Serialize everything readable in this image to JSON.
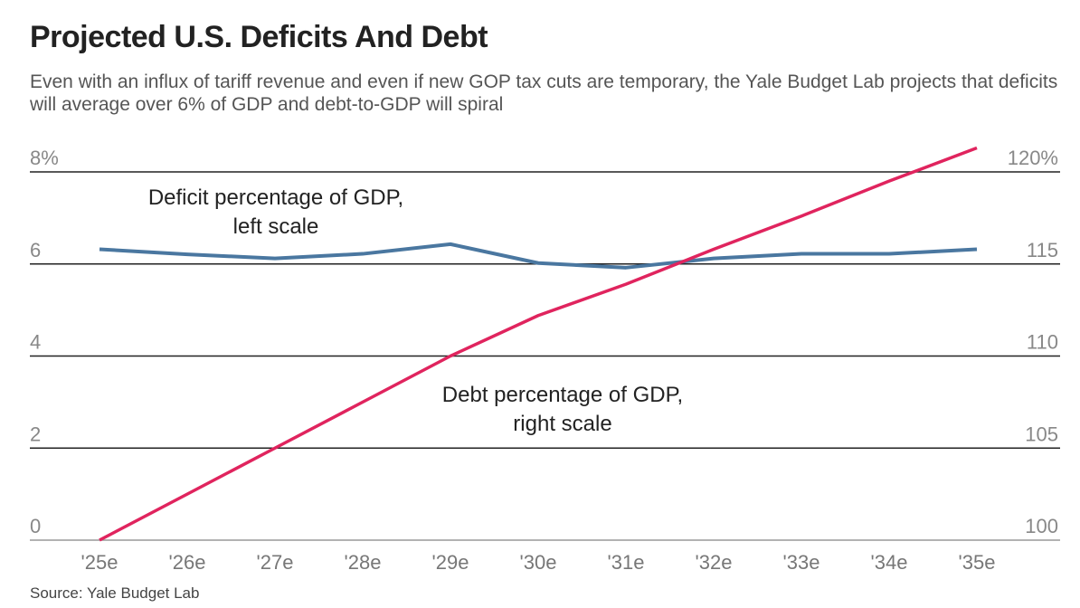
{
  "chart_data": {
    "type": "line",
    "title": "Projected U.S. Deficits And Debt",
    "subtitle": "Even with an influx of tariff revenue and even if new GOP tax cuts are temporary, the Yale Budget Lab projects that deficits will average over 6% of GDP and debt-to-GDP will spiral",
    "source": "Source: Yale Budget Lab",
    "categories": [
      "'25e",
      "'26e",
      "'27e",
      "'28e",
      "'29e",
      "'30e",
      "'31e",
      "'32e",
      "'33e",
      "'34e",
      "'35e"
    ],
    "left_axis": {
      "ylim": [
        0,
        8
      ],
      "ticks": [
        "0",
        "2",
        "4",
        "6",
        "8%"
      ],
      "tick_values": [
        0,
        2,
        4,
        6,
        8
      ]
    },
    "right_axis": {
      "ylim": [
        100,
        120
      ],
      "ticks": [
        "100",
        "105",
        "110",
        "115",
        "120%"
      ],
      "tick_values": [
        100,
        105,
        110,
        115,
        120
      ]
    },
    "grid": true,
    "series": [
      {
        "name": "Deficit percentage of GDP, left scale",
        "axis": "left",
        "color": "#4a77a0",
        "values": [
          6.32,
          6.21,
          6.12,
          6.22,
          6.43,
          6.02,
          5.92,
          6.12,
          6.22,
          6.22,
          6.32
        ]
      },
      {
        "name": "Debt percentage of GDP, right scale",
        "axis": "right",
        "color": "#e0245e",
        "values": [
          100,
          102.5,
          105,
          107.5,
          110,
          112.2,
          113.9,
          115.8,
          117.6,
          119.5,
          121.3
        ]
      }
    ],
    "annotations": [
      {
        "lines": [
          "Deficit percentage of GDP,",
          "left scale"
        ]
      },
      {
        "lines": [
          "Debt percentage of GDP,",
          "right scale"
        ]
      }
    ]
  }
}
